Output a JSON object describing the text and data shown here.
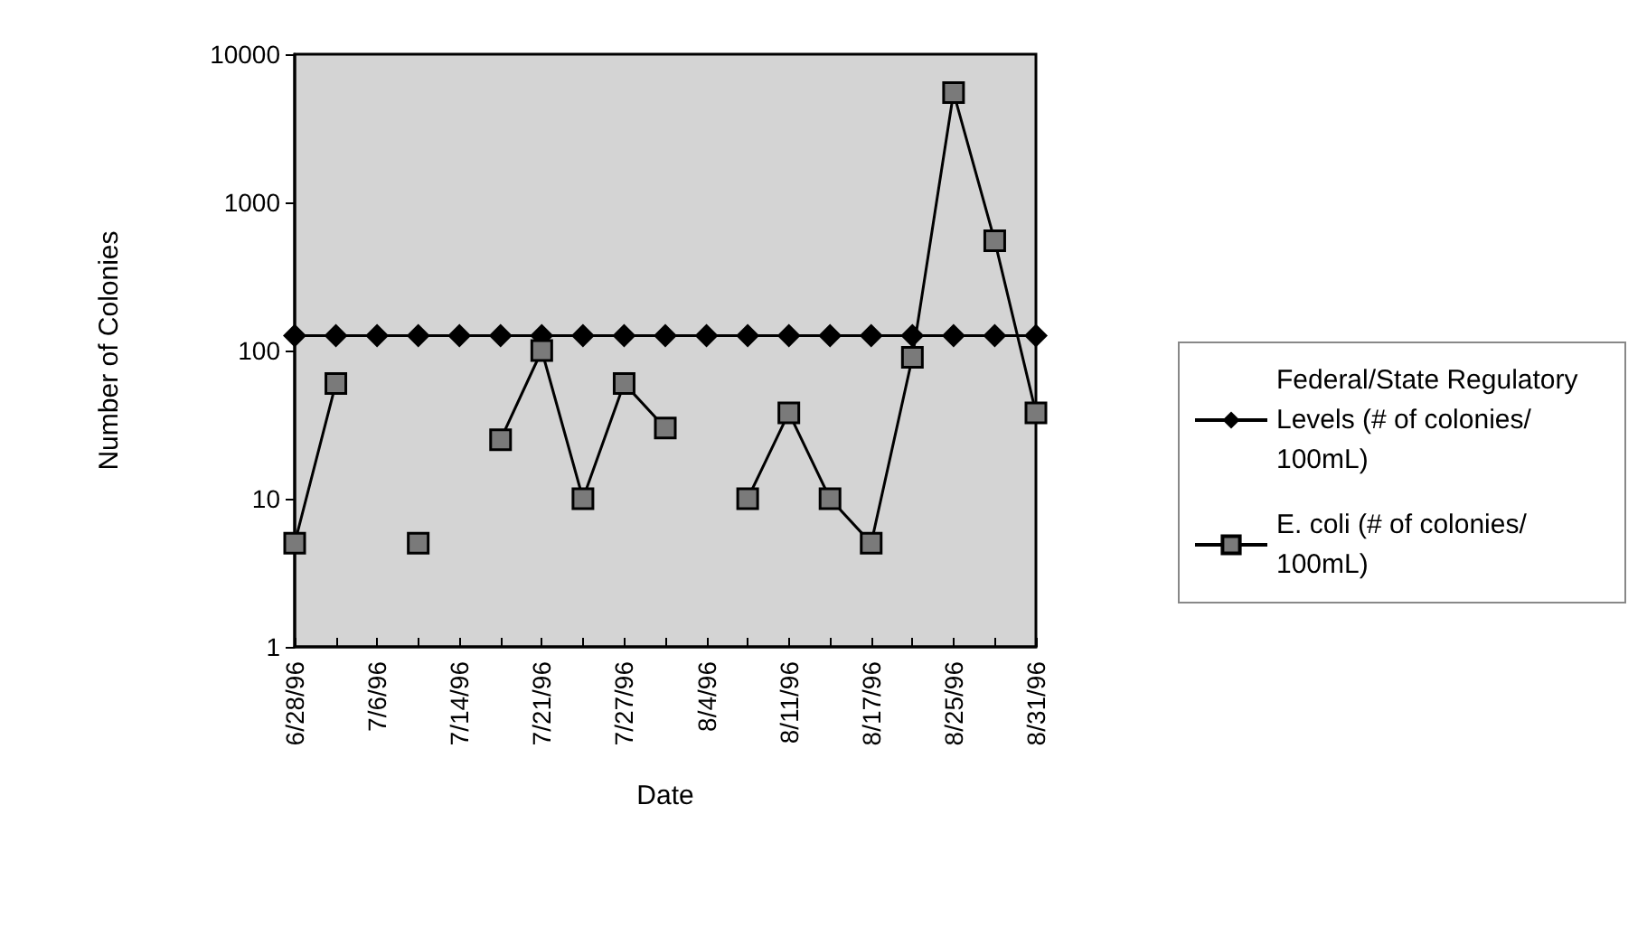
{
  "chart_data": {
    "type": "line",
    "xlabel": "Date",
    "ylabel": "Number of Colonies",
    "categories": [
      "6/28/96",
      null,
      "7/6/96",
      null,
      "7/14/96",
      null,
      "7/21/96",
      null,
      "7/27/96",
      null,
      "8/4/96",
      null,
      "8/11/96",
      null,
      "8/17/96",
      null,
      "8/25/96",
      null,
      "8/31/96"
    ],
    "series": [
      {
        "name": "Federal/State Regulatory Levels (# of colonies/100mL)",
        "color": "#000000",
        "marker": "diamond",
        "values": [
          126,
          126,
          126,
          126,
          126,
          126,
          126,
          126,
          126,
          126,
          126,
          126,
          126,
          126,
          126,
          126,
          126,
          126,
          126
        ]
      },
      {
        "name": "E. coli (# of colonies/100mL)",
        "color": "#000000",
        "marker": "square",
        "values": [
          5,
          60,
          null,
          5,
          null,
          25,
          100,
          10,
          60,
          30,
          null,
          10,
          38,
          10,
          5,
          90,
          5500,
          550,
          38
        ]
      }
    ],
    "log": "y",
    "ylim": [
      1,
      10000
    ],
    "yticks": [
      1,
      10,
      100,
      1000,
      10000
    ],
    "grid": false,
    "legend": "right",
    "line_style": "solid"
  }
}
